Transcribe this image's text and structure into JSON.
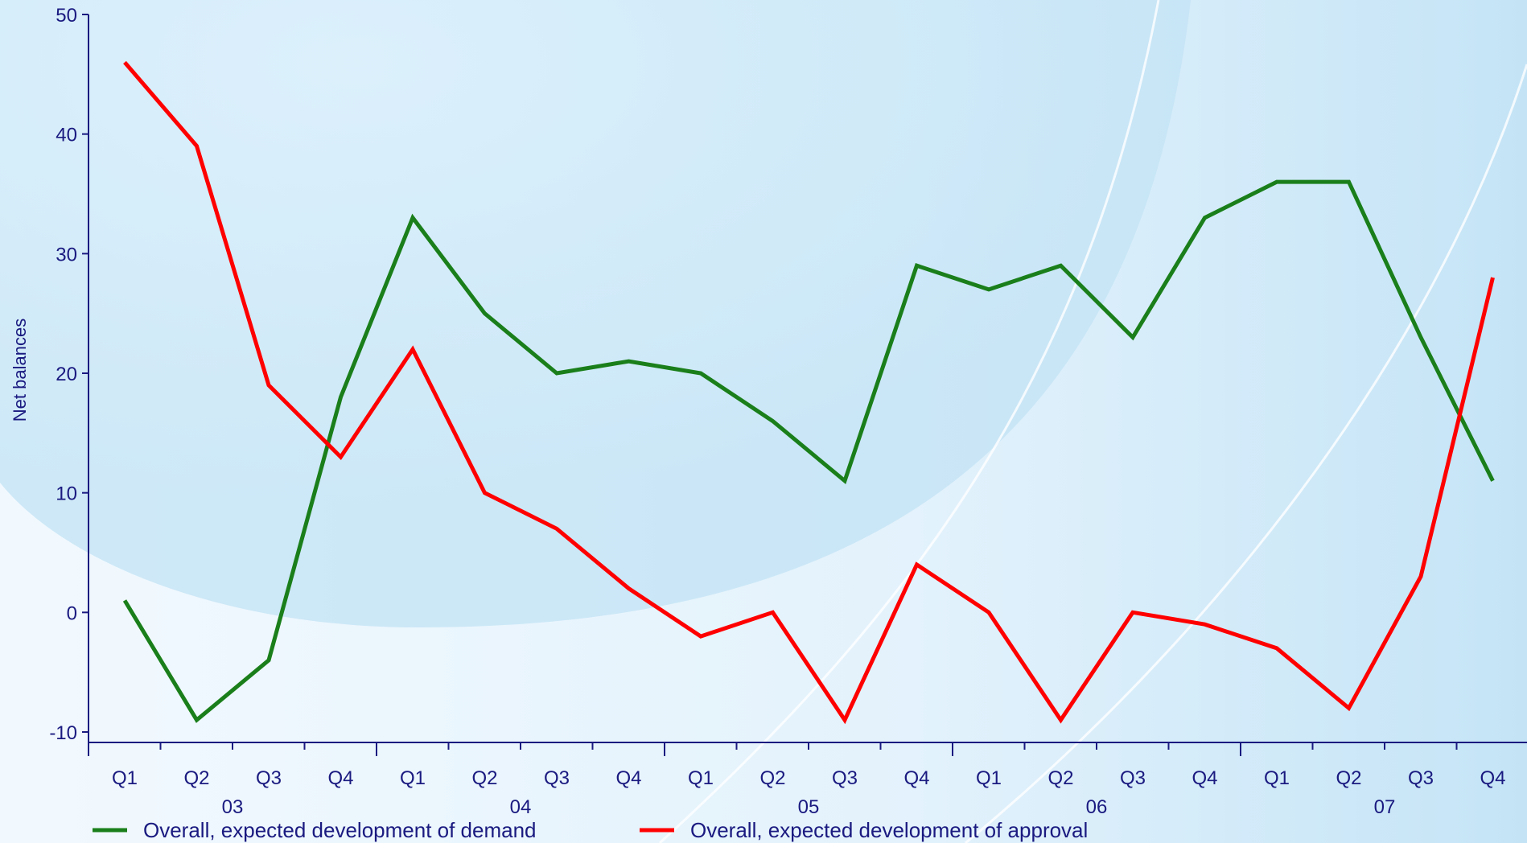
{
  "chart_data": {
    "type": "line",
    "ylabel": "Net balances",
    "xlabel": "",
    "ylim": [
      -10,
      50
    ],
    "yticks": [
      -10,
      0,
      10,
      20,
      30,
      40,
      50
    ],
    "quarters": [
      "Q1",
      "Q2",
      "Q3",
      "Q4",
      "Q1",
      "Q2",
      "Q3",
      "Q4",
      "Q1",
      "Q2",
      "Q3",
      "Q4",
      "Q1",
      "Q2",
      "Q3",
      "Q4",
      "Q1",
      "Q2",
      "Q3",
      "Q4"
    ],
    "years": [
      "03",
      "04",
      "05",
      "06",
      "07"
    ],
    "series": [
      {
        "name": "Overall, expected development of demand",
        "color": "#1a7f1a",
        "values": [
          1,
          -9,
          -4,
          18,
          33,
          25,
          20,
          21,
          20,
          16,
          11,
          29,
          27,
          29,
          23,
          33,
          36,
          36,
          23,
          11
        ]
      },
      {
        "name": "Overall, expected development of approval",
        "color": "#ff0000",
        "values": [
          46,
          39,
          19,
          13,
          22,
          10,
          7,
          2,
          -2,
          0,
          -9,
          4,
          0,
          -9,
          0,
          -1,
          -3,
          -8,
          3,
          28
        ]
      }
    ],
    "legend_position": "bottom",
    "grid": false
  },
  "colors": {
    "axis": "#1a1a80",
    "text": "#1a1a80",
    "bg_light": "#eef7fd",
    "bg_dark": "#c9e6f7"
  }
}
